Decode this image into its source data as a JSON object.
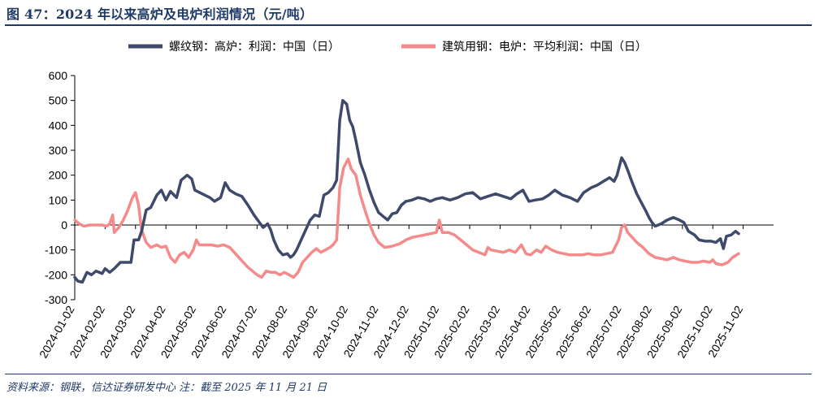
{
  "header": {
    "title": "图 47：2024 年以来高炉及电炉利润情况（元/吨）"
  },
  "footer": {
    "source": "资料来源：钢联，信达证券研发中心 注：截至 2025 年 11 月 21 日"
  },
  "colors": {
    "series1": "#3f4a6b",
    "series2": "#f58a8a",
    "accent": "#1f3a66"
  },
  "chart_data": {
    "type": "line",
    "title": "",
    "xlabel": "",
    "ylabel": "",
    "ylim": [
      -300,
      600
    ],
    "yticks": [
      600,
      500,
      400,
      300,
      200,
      100,
      0,
      -100,
      -200,
      -300
    ],
    "x_ticks": [
      "2024-01-02",
      "2024-02-02",
      "2024-03-02",
      "2024-04-02",
      "2024-05-02",
      "2024-06-02",
      "2024-07-02",
      "2024-08-02",
      "2024-09-02",
      "2024-10-02",
      "2024-11-02",
      "2024-12-02",
      "2025-01-02",
      "2025-02-02",
      "2025-03-02",
      "2025-04-02",
      "2025-05-02",
      "2025-06-02",
      "2025-07-02",
      "2025-08-02",
      "2025-09-02",
      "2025-10-02",
      "2025-11-02"
    ],
    "x_unit": "months since 2024-01-02",
    "xlim": [
      0,
      23
    ],
    "legend_position": "top",
    "grid": false,
    "series": [
      {
        "name": "螺纹钢：高炉：利润：中国（日）",
        "points": [
          [
            0.0,
            -210
          ],
          [
            0.1,
            -225
          ],
          [
            0.25,
            -230
          ],
          [
            0.4,
            -190
          ],
          [
            0.55,
            -200
          ],
          [
            0.7,
            -185
          ],
          [
            0.9,
            -195
          ],
          [
            1.0,
            -175
          ],
          [
            1.15,
            -190
          ],
          [
            1.3,
            -175
          ],
          [
            1.5,
            -150
          ],
          [
            1.75,
            -150
          ],
          [
            1.85,
            -150
          ],
          [
            1.95,
            -60
          ],
          [
            2.1,
            -60
          ],
          [
            2.2,
            -25
          ],
          [
            2.35,
            60
          ],
          [
            2.5,
            70
          ],
          [
            2.7,
            120
          ],
          [
            2.85,
            140
          ],
          [
            3.0,
            100
          ],
          [
            3.15,
            135
          ],
          [
            3.35,
            110
          ],
          [
            3.5,
            180
          ],
          [
            3.7,
            200
          ],
          [
            3.85,
            185
          ],
          [
            3.95,
            140
          ],
          [
            4.2,
            125
          ],
          [
            4.45,
            110
          ],
          [
            4.6,
            95
          ],
          [
            4.8,
            110
          ],
          [
            4.95,
            170
          ],
          [
            5.1,
            140
          ],
          [
            5.3,
            125
          ],
          [
            5.5,
            115
          ],
          [
            5.7,
            80
          ],
          [
            5.9,
            40
          ],
          [
            6.05,
            15
          ],
          [
            6.2,
            -10
          ],
          [
            6.35,
            5
          ],
          [
            6.45,
            -20
          ],
          [
            6.55,
            -60
          ],
          [
            6.7,
            -100
          ],
          [
            6.85,
            -120
          ],
          [
            7.0,
            -115
          ],
          [
            7.1,
            -130
          ],
          [
            7.2,
            -120
          ],
          [
            7.3,
            -100
          ],
          [
            7.45,
            -60
          ],
          [
            7.6,
            -20
          ],
          [
            7.75,
            20
          ],
          [
            7.9,
            40
          ],
          [
            8.05,
            35
          ],
          [
            8.2,
            120
          ],
          [
            8.35,
            130
          ],
          [
            8.5,
            150
          ],
          [
            8.62,
            180
          ],
          [
            8.72,
            420
          ],
          [
            8.82,
            500
          ],
          [
            8.95,
            485
          ],
          [
            9.05,
            420
          ],
          [
            9.15,
            395
          ],
          [
            9.25,
            340
          ],
          [
            9.4,
            250
          ],
          [
            9.55,
            200
          ],
          [
            9.7,
            140
          ],
          [
            9.85,
            90
          ],
          [
            10.0,
            50
          ],
          [
            10.15,
            35
          ],
          [
            10.3,
            20
          ],
          [
            10.45,
            45
          ],
          [
            10.6,
            50
          ],
          [
            10.75,
            80
          ],
          [
            10.9,
            95
          ],
          [
            11.1,
            100
          ],
          [
            11.3,
            110
          ],
          [
            11.5,
            105
          ],
          [
            11.7,
            95
          ],
          [
            11.9,
            105
          ],
          [
            12.1,
            110
          ],
          [
            12.35,
            100
          ],
          [
            12.6,
            110
          ],
          [
            12.85,
            125
          ],
          [
            13.1,
            130
          ],
          [
            13.35,
            105
          ],
          [
            13.6,
            115
          ],
          [
            13.85,
            125
          ],
          [
            14.1,
            115
          ],
          [
            14.35,
            105
          ],
          [
            14.55,
            125
          ],
          [
            14.75,
            140
          ],
          [
            14.95,
            95
          ],
          [
            15.15,
            100
          ],
          [
            15.4,
            105
          ],
          [
            15.6,
            120
          ],
          [
            15.8,
            140
          ],
          [
            16.05,
            120
          ],
          [
            16.3,
            110
          ],
          [
            16.55,
            95
          ],
          [
            16.75,
            130
          ],
          [
            17.0,
            150
          ],
          [
            17.2,
            160
          ],
          [
            17.4,
            175
          ],
          [
            17.6,
            190
          ],
          [
            17.75,
            175
          ],
          [
            17.85,
            200
          ],
          [
            18.0,
            270
          ],
          [
            18.1,
            250
          ],
          [
            18.2,
            220
          ],
          [
            18.35,
            170
          ],
          [
            18.5,
            125
          ],
          [
            18.65,
            90
          ],
          [
            18.8,
            55
          ],
          [
            18.9,
            30
          ],
          [
            19.0,
            10
          ],
          [
            19.1,
            -5
          ],
          [
            19.3,
            5
          ],
          [
            19.5,
            20
          ],
          [
            19.7,
            30
          ],
          [
            19.9,
            20
          ],
          [
            20.05,
            10
          ],
          [
            20.2,
            -25
          ],
          [
            20.4,
            -40
          ],
          [
            20.55,
            -60
          ],
          [
            20.75,
            -65
          ],
          [
            20.95,
            -65
          ],
          [
            21.1,
            -70
          ],
          [
            21.25,
            -55
          ],
          [
            21.35,
            -95
          ],
          [
            21.45,
            -45
          ],
          [
            21.6,
            -40
          ],
          [
            21.75,
            -25
          ],
          [
            21.85,
            -35
          ]
        ]
      },
      {
        "name": "建筑用钢：电炉：平均利润：中国（日）",
        "points": [
          [
            0.0,
            20
          ],
          [
            0.15,
            5
          ],
          [
            0.3,
            -5
          ],
          [
            0.5,
            0
          ],
          [
            0.7,
            0
          ],
          [
            0.9,
            0
          ],
          [
            1.05,
            -5
          ],
          [
            1.15,
            5
          ],
          [
            1.25,
            40
          ],
          [
            1.3,
            -30
          ],
          [
            1.45,
            -10
          ],
          [
            1.6,
            20
          ],
          [
            1.75,
            60
          ],
          [
            1.9,
            110
          ],
          [
            2.0,
            130
          ],
          [
            2.1,
            80
          ],
          [
            2.2,
            -20
          ],
          [
            2.35,
            -70
          ],
          [
            2.5,
            -90
          ],
          [
            2.7,
            -80
          ],
          [
            2.85,
            -90
          ],
          [
            3.0,
            -85
          ],
          [
            3.15,
            -130
          ],
          [
            3.3,
            -150
          ],
          [
            3.45,
            -120
          ],
          [
            3.6,
            -110
          ],
          [
            3.75,
            -130
          ],
          [
            3.9,
            -100
          ],
          [
            4.0,
            -60
          ],
          [
            4.1,
            -80
          ],
          [
            4.3,
            -80
          ],
          [
            4.5,
            -80
          ],
          [
            4.7,
            -85
          ],
          [
            4.9,
            -80
          ],
          [
            5.1,
            -90
          ],
          [
            5.25,
            -110
          ],
          [
            5.4,
            -130
          ],
          [
            5.55,
            -150
          ],
          [
            5.7,
            -170
          ],
          [
            5.85,
            -185
          ],
          [
            6.0,
            -200
          ],
          [
            6.15,
            -210
          ],
          [
            6.3,
            -185
          ],
          [
            6.45,
            -190
          ],
          [
            6.6,
            -190
          ],
          [
            6.75,
            -200
          ],
          [
            6.9,
            -190
          ],
          [
            7.05,
            -200
          ],
          [
            7.2,
            -210
          ],
          [
            7.35,
            -190
          ],
          [
            7.5,
            -150
          ],
          [
            7.65,
            -130
          ],
          [
            7.8,
            -110
          ],
          [
            7.95,
            -95
          ],
          [
            8.1,
            -110
          ],
          [
            8.25,
            -100
          ],
          [
            8.4,
            -90
          ],
          [
            8.5,
            -80
          ],
          [
            8.62,
            -60
          ],
          [
            8.72,
            150
          ],
          [
            8.85,
            230
          ],
          [
            9.0,
            265
          ],
          [
            9.1,
            225
          ],
          [
            9.25,
            200
          ],
          [
            9.4,
            120
          ],
          [
            9.55,
            60
          ],
          [
            9.7,
            5
          ],
          [
            9.85,
            -40
          ],
          [
            10.0,
            -70
          ],
          [
            10.2,
            -90
          ],
          [
            10.45,
            -85
          ],
          [
            10.7,
            -75
          ],
          [
            10.9,
            -60
          ],
          [
            11.1,
            -50
          ],
          [
            11.3,
            -45
          ],
          [
            11.5,
            -40
          ],
          [
            11.7,
            -35
          ],
          [
            11.9,
            -30
          ],
          [
            12.0,
            20
          ],
          [
            12.1,
            -30
          ],
          [
            12.3,
            -30
          ],
          [
            12.5,
            -40
          ],
          [
            12.7,
            -60
          ],
          [
            12.9,
            -80
          ],
          [
            13.1,
            -100
          ],
          [
            13.3,
            -110
          ],
          [
            13.5,
            -120
          ],
          [
            13.6,
            -90
          ],
          [
            13.7,
            -100
          ],
          [
            13.9,
            -105
          ],
          [
            14.1,
            -110
          ],
          [
            14.3,
            -100
          ],
          [
            14.5,
            -110
          ],
          [
            14.7,
            -80
          ],
          [
            14.85,
            -115
          ],
          [
            15.0,
            -120
          ],
          [
            15.2,
            -100
          ],
          [
            15.35,
            -110
          ],
          [
            15.5,
            -85
          ],
          [
            15.7,
            -100
          ],
          [
            15.9,
            -110
          ],
          [
            16.1,
            -115
          ],
          [
            16.3,
            -120
          ],
          [
            16.5,
            -120
          ],
          [
            16.7,
            -120
          ],
          [
            16.9,
            -115
          ],
          [
            17.1,
            -120
          ],
          [
            17.3,
            -120
          ],
          [
            17.5,
            -115
          ],
          [
            17.7,
            -110
          ],
          [
            17.9,
            -60
          ],
          [
            18.0,
            -10
          ],
          [
            18.1,
            0
          ],
          [
            18.2,
            -30
          ],
          [
            18.35,
            -50
          ],
          [
            18.5,
            -70
          ],
          [
            18.7,
            -90
          ],
          [
            18.9,
            -115
          ],
          [
            19.1,
            -130
          ],
          [
            19.3,
            -135
          ],
          [
            19.5,
            -140
          ],
          [
            19.7,
            -130
          ],
          [
            19.9,
            -140
          ],
          [
            20.1,
            -145
          ],
          [
            20.3,
            -150
          ],
          [
            20.5,
            -150
          ],
          [
            20.7,
            -145
          ],
          [
            20.9,
            -150
          ],
          [
            21.0,
            -140
          ],
          [
            21.1,
            -155
          ],
          [
            21.3,
            -160
          ],
          [
            21.5,
            -150
          ],
          [
            21.65,
            -130
          ],
          [
            21.85,
            -115
          ]
        ]
      }
    ]
  }
}
